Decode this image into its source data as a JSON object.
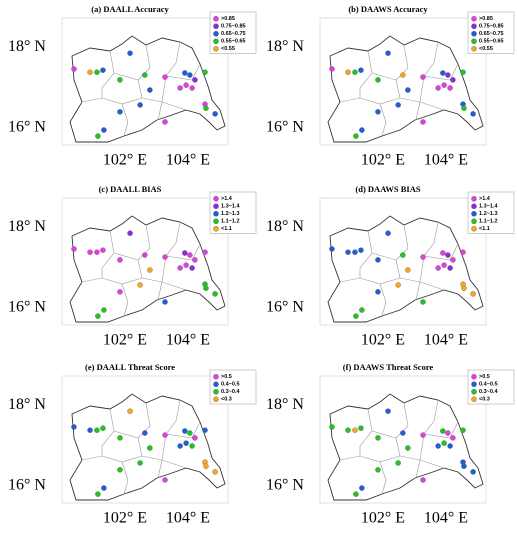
{
  "xlim": [
    100.0,
    105.27
  ],
  "ylim": [
    15.58,
    18.72
  ],
  "xticks": [
    {
      "value": 102,
      "label": "102° E"
    },
    {
      "value": 104,
      "label": "104° E"
    }
  ],
  "yticks": [
    {
      "value": 18,
      "label": "18° N"
    },
    {
      "value": 16,
      "label": "16° N"
    }
  ],
  "stations": {
    "lon": [
      100.38,
      100.89,
      101.11,
      101.3,
      102.16,
      101.84,
      102.63,
      103.27,
      103.9,
      104.06,
      103.94,
      104.13,
      103.75,
      104.22,
      104.54,
      102.79,
      102.48,
      103.27,
      101.14,
      101.33,
      104.54,
      104.57,
      104.86,
      101.84
    ],
    "lat": [
      17.46,
      17.38,
      17.38,
      17.43,
      17.85,
      17.19,
      17.31,
      17.26,
      17.36,
      17.31,
      17.06,
      16.99,
      16.99,
      17.19,
      17.38,
      16.94,
      16.57,
      16.15,
      15.8,
      15.95,
      16.59,
      16.49,
      16.35,
      16.4
    ]
  },
  "maps": [
    {
      "title": "(a) DAALL Accuracy",
      "legend": [
        {
          "label": ">0.85",
          "color": "#e040e0"
        },
        {
          "label": "0.75~0.85",
          "color": "#8a2be2"
        },
        {
          "label": "0.65~0.75",
          "color": "#1f5fd6"
        },
        {
          "label": "0.55~0.65",
          "color": "#22c322"
        },
        {
          "label": "<0.55",
          "color": "#f5a623"
        }
      ],
      "classes": [
        0,
        4,
        3,
        2,
        2,
        3,
        3,
        0,
        2,
        2,
        0,
        0,
        0,
        1,
        3,
        2,
        2,
        0,
        3,
        2,
        0,
        3,
        2,
        2
      ]
    },
    {
      "title": "(b) DAAWS Accuracy",
      "legend": [
        {
          "label": ">0.85",
          "color": "#e040e0"
        },
        {
          "label": "0.75~0.85",
          "color": "#8a2be2"
        },
        {
          "label": "0.65~0.75",
          "color": "#1f5fd6"
        },
        {
          "label": "0.55~0.65",
          "color": "#22c322"
        },
        {
          "label": "<0.55",
          "color": "#f5a623"
        }
      ],
      "classes": [
        0,
        4,
        3,
        2,
        2,
        3,
        4,
        0,
        2,
        1,
        0,
        0,
        0,
        1,
        3,
        2,
        2,
        0,
        3,
        2,
        2,
        3,
        2,
        2
      ]
    },
    {
      "title": "(c) DAALL BIAS",
      "legend": [
        {
          "label": ">1.4",
          "color": "#e040e0"
        },
        {
          "label": "1.3~1.4",
          "color": "#8a2be2"
        },
        {
          "label": "1.2~1.3",
          "color": "#1f5fd6"
        },
        {
          "label": "1.1~1.2",
          "color": "#22c322"
        },
        {
          "label": "<1.1",
          "color": "#f5a623"
        }
      ],
      "classes": [
        0,
        0,
        0,
        0,
        1,
        0,
        0,
        0,
        1,
        0,
        0,
        1,
        0,
        0,
        0,
        4,
        4,
        2,
        3,
        3,
        3,
        3,
        3,
        0
      ]
    },
    {
      "title": "(d) DAAWS BIAS",
      "legend": [
        {
          "label": ">1.4",
          "color": "#e040e0"
        },
        {
          "label": "1.3~1.4",
          "color": "#8a2be2"
        },
        {
          "label": "1.2~1.3",
          "color": "#1f5fd6"
        },
        {
          "label": "1.1~1.2",
          "color": "#22c322"
        },
        {
          "label": "<1.1",
          "color": "#f5a623"
        }
      ],
      "classes": [
        2,
        2,
        2,
        2,
        2,
        2,
        3,
        0,
        0,
        1,
        0,
        1,
        0,
        0,
        0,
        4,
        4,
        3,
        3,
        3,
        4,
        4,
        4,
        2
      ]
    },
    {
      "title": "(e) DAALL Threat Score",
      "legend": [
        {
          "label": ">0.5",
          "color": "#e040e0"
        },
        {
          "label": "0.4~0.5",
          "color": "#1f5fd6"
        },
        {
          "label": "0.3~0.4",
          "color": "#22c322"
        },
        {
          "label": "<0.3",
          "color": "#f5a623"
        }
      ],
      "classes": [
        1,
        1,
        2,
        2,
        3,
        2,
        1,
        0,
        1,
        2,
        1,
        2,
        1,
        0,
        1,
        2,
        2,
        0,
        2,
        1,
        3,
        3,
        3,
        2
      ]
    },
    {
      "title": "(f) DAAWS Threat Score",
      "legend": [
        {
          "label": ">0.5",
          "color": "#e040e0"
        },
        {
          "label": "0.4~0.5",
          "color": "#1f5fd6"
        },
        {
          "label": "0.3~0.4",
          "color": "#22c322"
        },
        {
          "label": "<0.3",
          "color": "#f5a623"
        }
      ],
      "classes": [
        2,
        2,
        3,
        2,
        1,
        2,
        1,
        0,
        2,
        0,
        2,
        1,
        1,
        0,
        2,
        2,
        2,
        0,
        2,
        1,
        1,
        1,
        1,
        2
      ]
    }
  ]
}
